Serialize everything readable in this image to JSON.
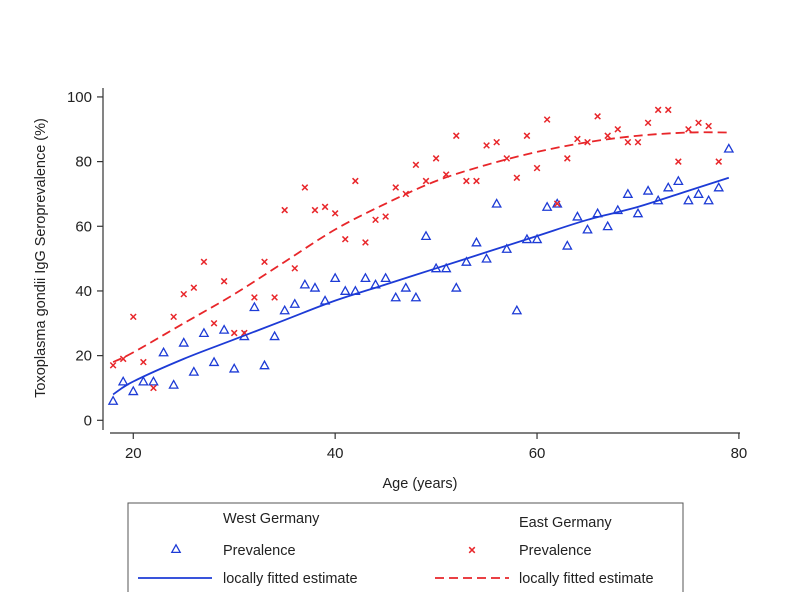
{
  "chart_data": {
    "type": "scatter",
    "xlabel": "Age (years)",
    "ylabel": "Toxoplasma gondii  IgG  Seroprevalence (%)",
    "xlim": [
      17,
      81
    ],
    "ylim": [
      -3,
      104
    ],
    "xticks": [
      20,
      40,
      60,
      80
    ],
    "yticks": [
      0,
      20,
      40,
      60,
      80,
      100
    ],
    "grid": false,
    "legend_position": "bottom",
    "legend": {
      "west_header": "West Germany",
      "east_header": "East Germany",
      "west_points_label": "Prevalence",
      "east_points_label": "Prevalence",
      "west_line_label": "locally fitted estimate",
      "east_line_label": "locally fitted estimate"
    },
    "colors": {
      "west": "#1d3bd6",
      "east": "#e8262a"
    },
    "series": [
      {
        "group": "West Germany",
        "kind": "points",
        "marker": "triangle",
        "x": [
          18,
          19,
          20,
          21,
          22,
          23,
          24,
          25,
          26,
          27,
          28,
          29,
          30,
          31,
          32,
          33,
          34,
          35,
          36,
          37,
          38,
          39,
          40,
          41,
          42,
          43,
          44,
          45,
          46,
          47,
          48,
          49,
          50,
          51,
          52,
          53,
          54,
          55,
          56,
          57,
          58,
          59,
          60,
          61,
          62,
          63,
          64,
          65,
          66,
          67,
          68,
          69,
          70,
          71,
          72,
          73,
          74,
          75,
          76,
          77,
          78,
          79
        ],
        "y": [
          6,
          12,
          9,
          12,
          12,
          21,
          11,
          24,
          15,
          27,
          18,
          28,
          16,
          26,
          35,
          17,
          26,
          34,
          36,
          42,
          41,
          37,
          44,
          40,
          40,
          44,
          42,
          44,
          38,
          41,
          38,
          57,
          47,
          47,
          41,
          49,
          55,
          50,
          67,
          53,
          34,
          56,
          56,
          66,
          67,
          54,
          63,
          59,
          64,
          60,
          65,
          70,
          64,
          71,
          68,
          72,
          74,
          68,
          70,
          68,
          72,
          84
        ]
      },
      {
        "group": "East Germany",
        "kind": "points",
        "marker": "x",
        "x": [
          18,
          19,
          20,
          21,
          22,
          24,
          25,
          26,
          27,
          28,
          29,
          30,
          31,
          32,
          33,
          34,
          35,
          36,
          37,
          38,
          39,
          40,
          41,
          42,
          43,
          44,
          45,
          46,
          47,
          48,
          49,
          50,
          51,
          52,
          53,
          54,
          55,
          56,
          57,
          58,
          59,
          60,
          61,
          62,
          63,
          64,
          65,
          66,
          67,
          68,
          69,
          70,
          71,
          72,
          73,
          74,
          75,
          76,
          77,
          78
        ],
        "y": [
          17,
          19,
          32,
          18,
          10,
          32,
          39,
          41,
          49,
          30,
          43,
          27,
          27,
          38,
          49,
          38,
          65,
          47,
          72,
          65,
          66,
          64,
          56,
          74,
          55,
          62,
          63,
          72,
          70,
          79,
          74,
          81,
          76,
          88,
          74,
          74,
          85,
          86,
          81,
          75,
          88,
          78,
          93,
          67,
          81,
          87,
          86,
          94,
          88,
          90,
          86,
          86,
          92,
          96,
          96,
          80,
          90,
          92,
          91,
          80
        ]
      },
      {
        "group": "West Germany",
        "kind": "line",
        "style": "solid",
        "x": [
          18,
          20,
          25,
          30,
          35,
          40,
          45,
          50,
          55,
          60,
          65,
          70,
          75,
          79
        ],
        "y": [
          8,
          12,
          19,
          25,
          31,
          37,
          42,
          47,
          52,
          57,
          62,
          66,
          71,
          75
        ]
      },
      {
        "group": "East Germany",
        "kind": "line",
        "style": "dashed",
        "x": [
          18,
          20,
          25,
          30,
          35,
          40,
          45,
          50,
          55,
          60,
          65,
          70,
          75,
          79
        ],
        "y": [
          18,
          21,
          30,
          39,
          49,
          59,
          67,
          74,
          79,
          83,
          86,
          88,
          89,
          89
        ]
      }
    ]
  }
}
